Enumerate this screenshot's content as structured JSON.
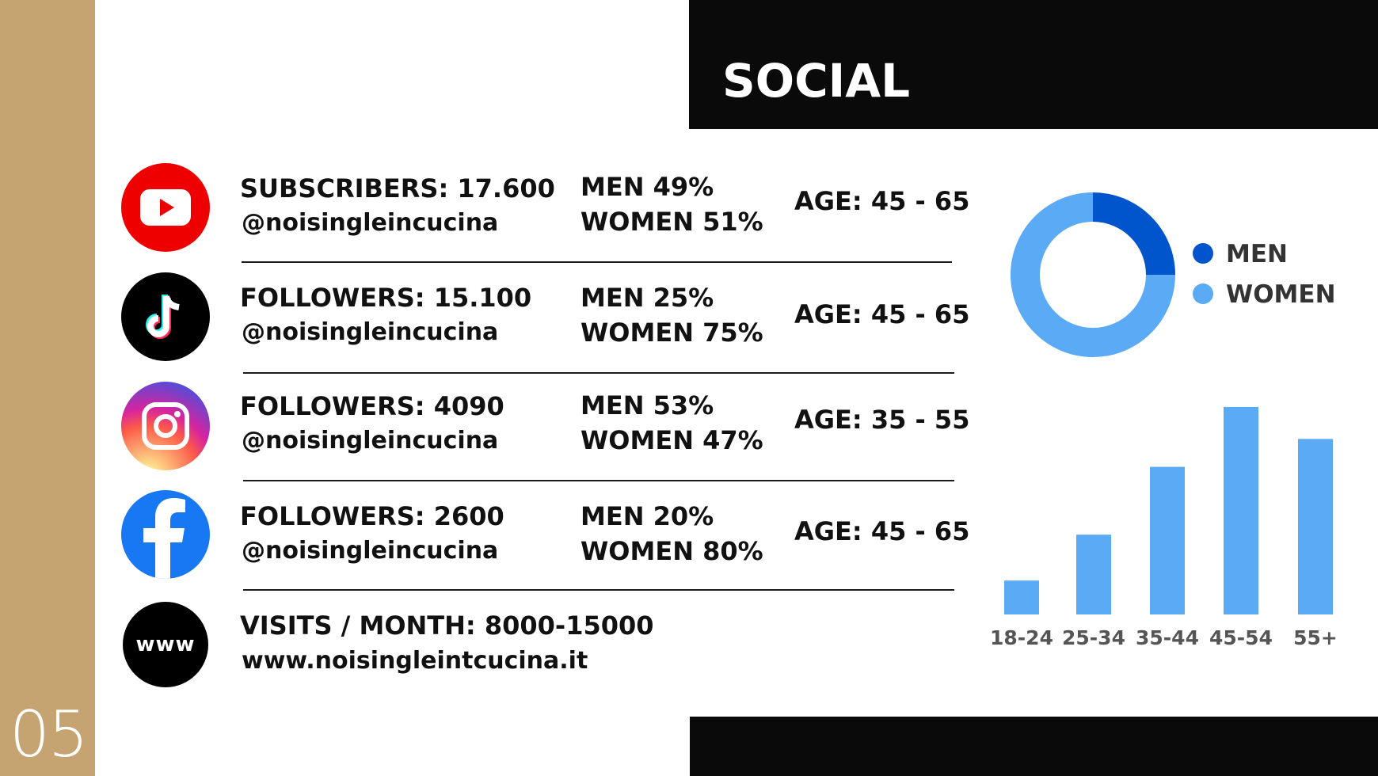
{
  "slide": {
    "title": "SOCIAL",
    "page_number": "05"
  },
  "rows": [
    {
      "platform": "youtube",
      "icon": "youtube-icon",
      "count_text": "SUBSCRIBERS: 17.600",
      "handle": "@noisingleincucina",
      "men": "MEN 49%",
      "women": "WOMEN 51%",
      "age": "AGE: 45 - 65"
    },
    {
      "platform": "tiktok",
      "icon": "tiktok-icon",
      "count_text": "FOLLOWERS: 15.100",
      "handle": "@noisingleincucina",
      "men": "MEN 25%",
      "women": "WOMEN 75%",
      "age": "AGE: 45 - 65"
    },
    {
      "platform": "instagram",
      "icon": "instagram-icon",
      "count_text": "FOLLOWERS: 4090",
      "handle": "@noisingleincucina",
      "men": "MEN 53%",
      "women": "WOMEN 47%",
      "age": "AGE: 35 - 55"
    },
    {
      "platform": "facebook",
      "icon": "facebook-icon",
      "count_text": "FOLLOWERS: 2600",
      "handle": "@noisingleincucina",
      "men": "MEN 20%",
      "women": "WOMEN 80%",
      "age": "AGE: 45 - 65"
    }
  ],
  "website": {
    "icon": "www-icon",
    "icon_text": "www",
    "visits_text": "VISITS / MONTH: 8000-15000",
    "url": "www.noisingleintcucina.it"
  },
  "colors": {
    "men": "#0055cc",
    "women": "#5aaaf6",
    "sidebar": "#c6a472",
    "youtube": "#ee0000",
    "facebook": "#1877f2"
  },
  "chart_data": [
    {
      "type": "pie",
      "donut": true,
      "categories": [
        "MEN",
        "WOMEN"
      ],
      "values": [
        25,
        75
      ],
      "legend": "right"
    },
    {
      "type": "bar",
      "categories": [
        "18-24",
        "25-34",
        "35-44",
        "45-54",
        "55+"
      ],
      "values": [
        17,
        40,
        74,
        104,
        88
      ],
      "grid": false
    }
  ]
}
